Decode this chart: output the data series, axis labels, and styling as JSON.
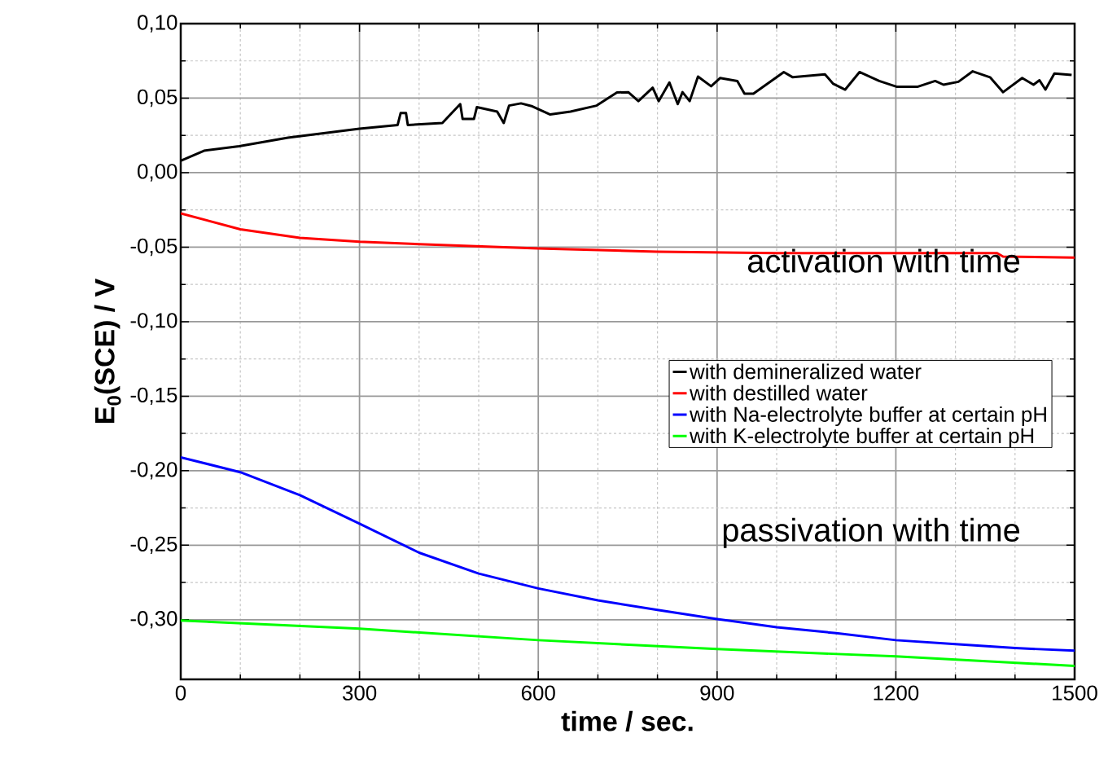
{
  "chart_data": {
    "type": "line",
    "xlabel": "time / sec.",
    "ylabel": "E$_{0}$(SCE) / V",
    "xlim": [
      0,
      1500
    ],
    "ylim": [
      -0.34,
      0.1
    ],
    "xticks": [
      0,
      300,
      600,
      900,
      1200,
      1500
    ],
    "yticks": [
      {
        "value": 0.1,
        "label": "0,10"
      },
      {
        "value": 0.05,
        "label": "0,05"
      },
      {
        "value": 0,
        "label": "0,00"
      },
      {
        "value": -0.05,
        "label": "-0,05"
      },
      {
        "value": -0.1,
        "label": "-0,10"
      },
      {
        "value": -0.15,
        "label": "-0,15"
      },
      {
        "value": -0.2,
        "label": "-0,20"
      },
      {
        "value": -0.25,
        "label": "-0,25"
      },
      {
        "value": -0.3,
        "label": "-0,30"
      }
    ],
    "grid": true,
    "legend": "right",
    "marker": "none",
    "line_style": "solid",
    "annotations": [
      "activation with time",
      "passivation with time"
    ],
    "series": [
      {
        "name": "with demineralized water",
        "color": "#000000",
        "x": [
          0,
          39,
          98,
          180,
          300,
          364,
          369,
          378,
          381,
          439,
          469,
          473,
          492,
          497,
          531,
          542,
          551,
          571,
          590,
          620,
          654,
          698,
          732,
          751,
          768,
          792,
          802,
          820,
          834,
          842,
          854,
          868,
          890,
          905,
          934,
          946,
          961,
          1012,
          1027,
          1081,
          1095,
          1115,
          1139,
          1172,
          1202,
          1236,
          1266,
          1280,
          1305,
          1329,
          1358,
          1380,
          1412,
          1431,
          1441,
          1451,
          1466,
          1495
        ],
        "values": [
          0.008,
          0.0147,
          0.0177,
          0.0235,
          0.0295,
          0.032,
          0.04,
          0.04,
          0.032,
          0.0333,
          0.046,
          0.036,
          0.036,
          0.044,
          0.041,
          0.0333,
          0.045,
          0.0465,
          0.0445,
          0.039,
          0.041,
          0.045,
          0.0538,
          0.054,
          0.048,
          0.057,
          0.048,
          0.0605,
          0.046,
          0.054,
          0.048,
          0.0645,
          0.058,
          0.0635,
          0.0615,
          0.053,
          0.053,
          0.0675,
          0.064,
          0.066,
          0.0596,
          0.0557,
          0.0675,
          0.0615,
          0.0576,
          0.0576,
          0.0615,
          0.059,
          0.061,
          0.068,
          0.064,
          0.054,
          0.0635,
          0.059,
          0.062,
          0.0557,
          0.0665,
          0.0655
        ]
      },
      {
        "name": "with destilled water",
        "color": "#ff0000",
        "x": [
          0,
          100,
          200,
          300,
          400,
          600,
          800,
          1000,
          1200,
          1370,
          1380,
          1500
        ],
        "values": [
          -0.0273,
          -0.038,
          -0.0437,
          -0.0464,
          -0.048,
          -0.0508,
          -0.053,
          -0.054,
          -0.054,
          -0.054,
          -0.0563,
          -0.057
        ]
      },
      {
        "name": "with  Na-electrolyte buffer at certain pH",
        "color": "#0000ff",
        "x": [
          0,
          100,
          200,
          300,
          400,
          500,
          600,
          700,
          800,
          900,
          1000,
          1100,
          1200,
          1300,
          1400,
          1500
        ],
        "values": [
          -0.191,
          -0.201,
          -0.2164,
          -0.2355,
          -0.255,
          -0.269,
          -0.279,
          -0.287,
          -0.2934,
          -0.2995,
          -0.305,
          -0.309,
          -0.3137,
          -0.3164,
          -0.319,
          -0.3208
        ]
      },
      {
        "name": "with K-electrolyte buffer  at certain pH",
        "color": "#00ff00",
        "x": [
          0,
          300,
          600,
          900,
          1200,
          1500
        ],
        "values": [
          -0.3005,
          -0.306,
          -0.3137,
          -0.3197,
          -0.3246,
          -0.331
        ]
      }
    ]
  }
}
